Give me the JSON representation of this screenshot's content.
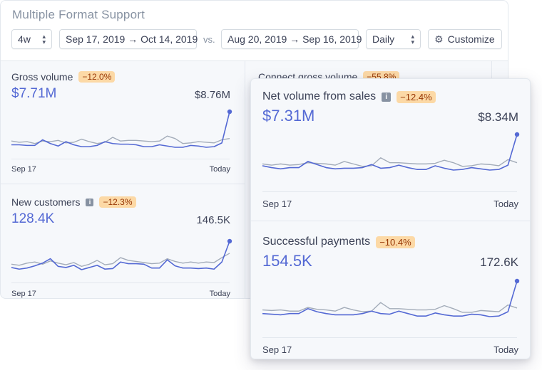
{
  "title": "Multiple Format Support",
  "controls": {
    "period": "4w",
    "date_range": "Sep 17, 2019 → Oct 14, 2019",
    "vs": "vs.",
    "compare_range": "Aug 20, 2019 → Sep 16, 2019",
    "interval": "Daily",
    "customize": "Customize"
  },
  "colors": {
    "primary_series": "#5469d4",
    "compare_series": "#a3acb9",
    "badge_bg": "#fcd9a6",
    "badge_text": "#983705"
  },
  "cards": {
    "gross_volume": {
      "title": "Gross volume",
      "badge": "−12.0%",
      "value": "$7.71M",
      "compare_value": "$8.76M",
      "x_start": "Sep 17",
      "x_end": "Today"
    },
    "connect_gross_volume": {
      "title": "Connect gross volume",
      "badge": "−55.8%"
    },
    "new_customers": {
      "title": "New customers",
      "badge": "−12.3%",
      "value": "128.4K",
      "compare_value": "146.5K",
      "x_start": "Sep 17",
      "x_end": "Today"
    },
    "net_volume": {
      "title": "Net volume from sales",
      "badge": "−12.4%",
      "value": "$7.31M",
      "compare_value": "$8.34M",
      "x_start": "Sep 17",
      "x_end": "Today"
    },
    "successful_payments": {
      "title": "Successful payments",
      "badge": "−10.4%",
      "value": "154.5K",
      "compare_value": "172.6K",
      "x_start": "Sep 17",
      "x_end": "Today"
    }
  },
  "chart_data": [
    {
      "type": "line",
      "name": "gross_volume",
      "x_range": [
        "Sep 17",
        "Today"
      ],
      "series": [
        {
          "values": [
            42,
            42,
            41,
            41,
            50,
            44,
            40,
            47,
            42,
            39,
            39,
            41,
            47,
            44,
            43,
            43,
            42,
            39,
            39,
            42,
            40,
            38,
            38,
            41,
            40,
            38,
            39,
            45,
            95
          ]
        },
        {
          "values": [
            48,
            46,
            47,
            44,
            48,
            47,
            49,
            45,
            46,
            51,
            47,
            44,
            46,
            54,
            48,
            49,
            49,
            48,
            47,
            48,
            56,
            52,
            44,
            45,
            47,
            46,
            45,
            50,
            52
          ]
        }
      ]
    },
    {
      "type": "line",
      "name": "new_customers",
      "x_range": [
        "Sep 17",
        "Today"
      ],
      "series": [
        {
          "values": [
            42,
            39,
            41,
            45,
            50,
            58,
            44,
            42,
            46,
            38,
            42,
            46,
            39,
            40,
            52,
            49,
            49,
            48,
            41,
            41,
            56,
            45,
            41,
            41,
            40,
            41,
            39,
            52,
            90
          ]
        },
        {
          "values": [
            48,
            46,
            50,
            52,
            48,
            54,
            50,
            47,
            51,
            44,
            48,
            55,
            47,
            49,
            60,
            55,
            53,
            51,
            49,
            50,
            58,
            53,
            50,
            52,
            50,
            52,
            51,
            60,
            68
          ]
        }
      ]
    },
    {
      "type": "line",
      "name": "net_volume",
      "x_range": [
        "Sep 17",
        "Today"
      ],
      "series": [
        {
          "values": [
            45,
            42,
            40,
            42,
            42,
            52,
            47,
            42,
            40,
            41,
            41,
            42,
            47,
            41,
            42,
            46,
            42,
            39,
            39,
            45,
            41,
            38,
            39,
            42,
            40,
            38,
            39,
            46,
            96
          ]
        },
        {
          "values": [
            48,
            46,
            48,
            46,
            47,
            50,
            49,
            48,
            46,
            52,
            48,
            44,
            45,
            58,
            50,
            50,
            49,
            48,
            48,
            49,
            54,
            50,
            44,
            45,
            48,
            47,
            45,
            55,
            50
          ]
        }
      ]
    },
    {
      "type": "line",
      "name": "successful_payments",
      "x_range": [
        "Sep 17",
        "Today"
      ],
      "series": [
        {
          "values": [
            42,
            41,
            40,
            42,
            42,
            50,
            45,
            42,
            40,
            40,
            40,
            42,
            46,
            42,
            41,
            46,
            42,
            38,
            38,
            43,
            40,
            38,
            38,
            41,
            40,
            37,
            38,
            45,
            95
          ]
        },
        {
          "values": [
            48,
            47,
            48,
            46,
            46,
            52,
            49,
            48,
            46,
            52,
            48,
            45,
            46,
            60,
            50,
            50,
            49,
            48,
            48,
            49,
            55,
            50,
            44,
            44,
            47,
            46,
            45,
            56,
            51
          ]
        }
      ]
    }
  ]
}
